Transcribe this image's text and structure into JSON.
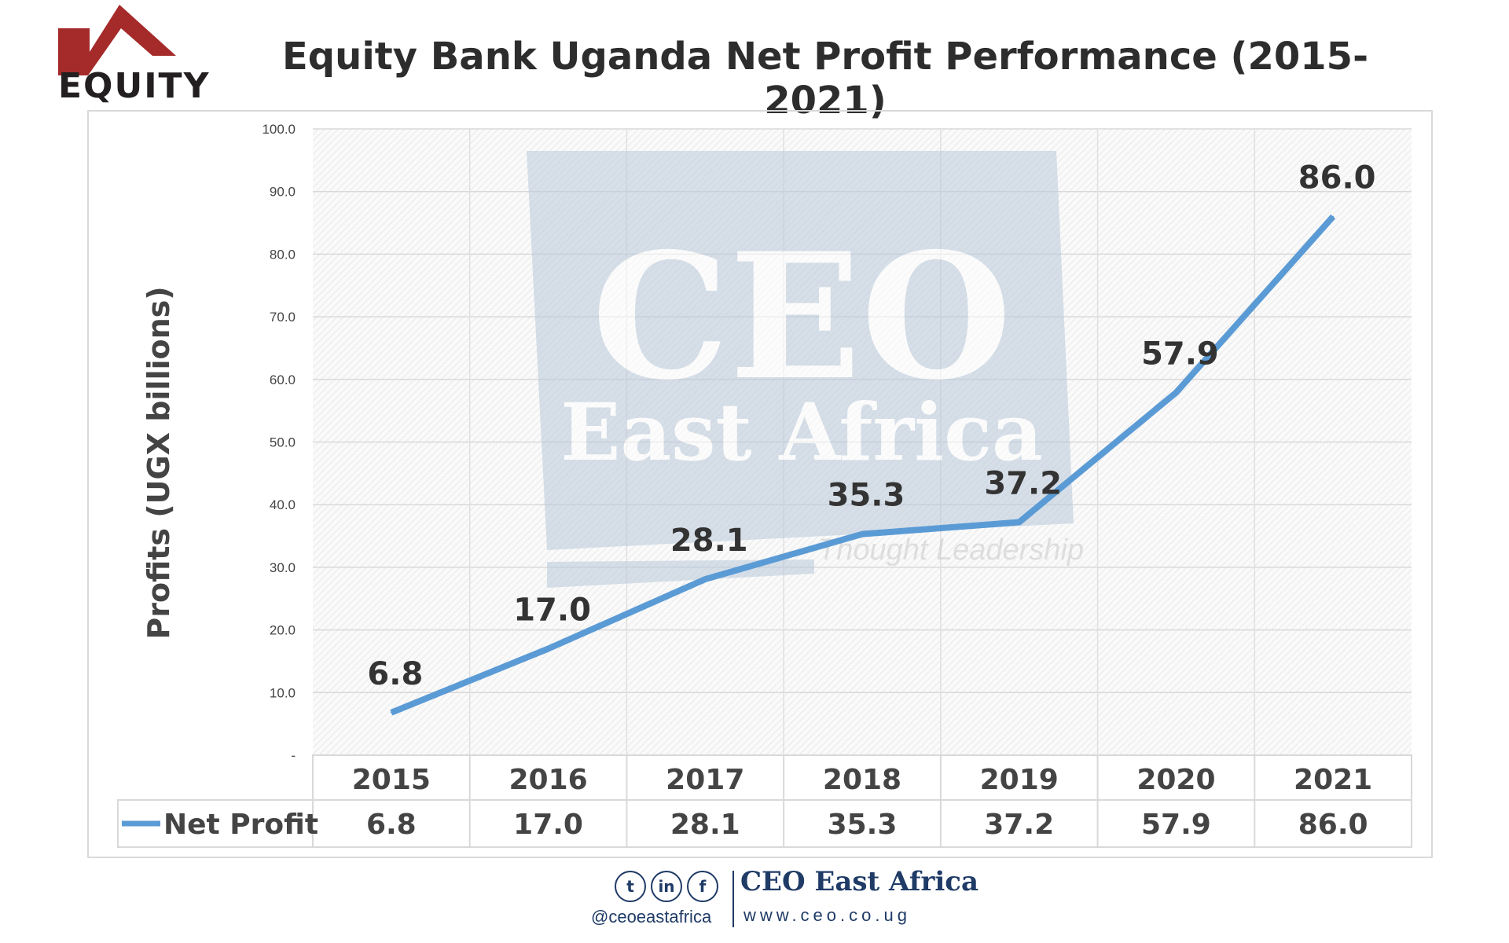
{
  "logo": {
    "text": "EQUITY",
    "color": "#a52a2a"
  },
  "title": "Equity Bank Uganda Net Profit Performance (2015-2021)",
  "watermark": {
    "line1": "CEO",
    "line2": "East Africa",
    "tagline": "Thought Leadership"
  },
  "chart_data": {
    "type": "line",
    "title": "Equity Bank Uganda Net Profit Performance (2015-2021)",
    "xlabel": "",
    "ylabel": "Profits (UGX billions)",
    "ylim": [
      0,
      100
    ],
    "yticks": [
      "-",
      "10.0",
      "20.0",
      "30.0",
      "40.0",
      "50.0",
      "60.0",
      "70.0",
      "80.0",
      "90.0",
      "100.0"
    ],
    "categories": [
      "2015",
      "2016",
      "2017",
      "2018",
      "2019",
      "2020",
      "2021"
    ],
    "series": [
      {
        "name": "Net Profit",
        "values": [
          6.8,
          17.0,
          28.1,
          35.3,
          37.2,
          57.9,
          86.0
        ],
        "labels": [
          "6.8",
          "17.0",
          "28.1",
          "35.3",
          "37.2",
          "57.9",
          "86.0"
        ],
        "color": "#5b9bd5"
      }
    ],
    "grid": true,
    "legend": "data-table-bottom"
  },
  "footer": {
    "handle": "@ceoeastafrica",
    "brand": "CEO East Africa",
    "website": "www.ceo.co.ug",
    "icons": [
      "twitter-icon",
      "linkedin-icon",
      "facebook-icon"
    ]
  }
}
